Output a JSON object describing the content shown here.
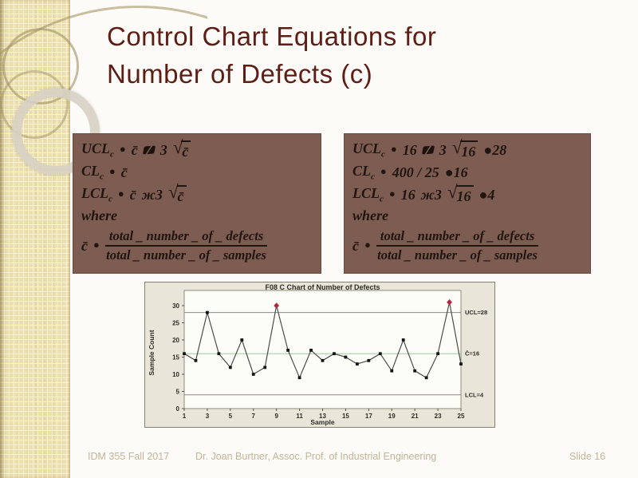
{
  "slide": {
    "title_line1": "Control Chart Equations for",
    "title_line2": "Number of Defects (c)",
    "title_color": "#5e1d15",
    "footer": {
      "course": "IDM 355 Fall 2017",
      "author": "Dr. Joan Burtner, Assoc. Prof. of Industrial Engineering",
      "slide_number": "Slide 16"
    }
  },
  "boxes": {
    "background_color": "#7d5c51",
    "symbolic": {
      "ucl": {
        "name": "UCL",
        "sub": "c",
        "eq": "●",
        "term": "c̄",
        "op3": "3",
        "radical": "√",
        "radicand": "c̄",
        "result": ""
      },
      "cl": {
        "name": "CL",
        "sub": "c",
        "eq": "●",
        "term": "c̄",
        "result": ""
      },
      "lcl": {
        "name": "LCL",
        "sub": "c",
        "eq": "●",
        "term": "c̄",
        "op3": "ж3",
        "radical": "√",
        "radicand": "c̄",
        "result": ""
      },
      "where_label": "where",
      "cbar": {
        "lhs": "c̄",
        "eq": "●",
        "numerator": "total _ number _ of _ defects",
        "denominator": "total _ number _ of _ samples"
      }
    },
    "numeric": {
      "ucl": {
        "name": "UCL",
        "sub": "c",
        "eq": "●",
        "term": "16",
        "op3": "3",
        "radical": "√",
        "radicand": "16",
        "result": "●28"
      },
      "cl": {
        "name": "CL",
        "sub": "c",
        "eq": "●",
        "term": "400 / 25",
        "result": "●16"
      },
      "lcl": {
        "name": "LCL",
        "sub": "c",
        "eq": "●",
        "term": "16",
        "op3": "ж3",
        "radical": "√",
        "radicand": "16",
        "result": "●4"
      },
      "where_label": "where",
      "cbar": {
        "lhs": "c̄",
        "eq": "●",
        "numerator": "total _ number _ of _ defects",
        "denominator": "total _ number _ of _ samples"
      }
    }
  },
  "chart_data": {
    "type": "line",
    "title": "F08   C Chart of Number of Defects",
    "xlabel": "Sample",
    "ylabel": "Sample Count",
    "x": [
      1,
      2,
      3,
      4,
      5,
      6,
      7,
      8,
      9,
      10,
      11,
      12,
      13,
      14,
      15,
      16,
      17,
      18,
      19,
      20,
      21,
      22,
      23,
      24,
      25
    ],
    "values": [
      16,
      14,
      28,
      16,
      12,
      20,
      10,
      12,
      30,
      17,
      9,
      17,
      14,
      16,
      15,
      13,
      14,
      16,
      11,
      20,
      11,
      9,
      16,
      31,
      13
    ],
    "out_of_control_points": [
      {
        "x": 9,
        "y": 30
      },
      {
        "x": 24,
        "y": 31
      }
    ],
    "ucl": 28,
    "center": 16,
    "lcl": 4,
    "ucl_label": "UCL=28",
    "center_label": "C̄=16",
    "lcl_label": "LCL=4",
    "ylim": [
      0,
      30
    ],
    "yticks": [
      0,
      5,
      10,
      15,
      20,
      25,
      30
    ],
    "xticks": [
      1,
      3,
      5,
      7,
      9,
      11,
      13,
      15,
      17,
      19,
      21,
      23,
      25
    ],
    "grid": false,
    "legend_position": "right",
    "colors": {
      "line": "#4c4c4c",
      "marker": "#141414",
      "out_of_control": "#b32740",
      "limit_lines": "#9b8383",
      "center_line": "#9fc79f",
      "plot_bg": "#fdfdf8",
      "outer_bg": "#e9e5d8",
      "text": "#2e2c28"
    }
  }
}
